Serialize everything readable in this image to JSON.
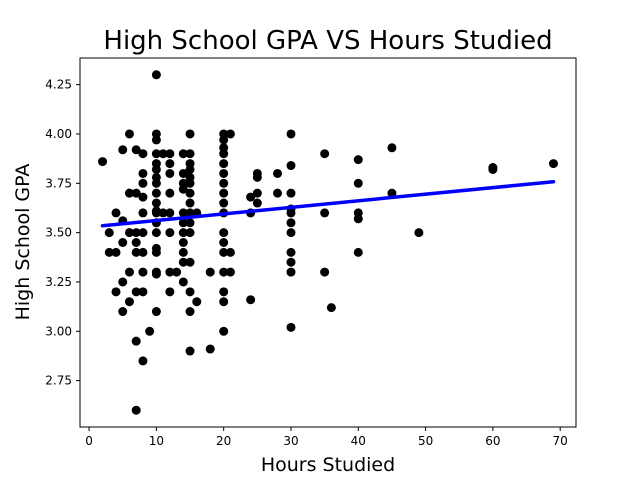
{
  "chart_data": {
    "type": "scatter",
    "title": "High School GPA VS Hours Studied",
    "xlabel": "Hours Studied",
    "ylabel": "High School GPA",
    "xlim": [
      -1.35,
      72.35
    ],
    "ylim": [
      2.515,
      4.385
    ],
    "x_ticks": [
      0,
      10,
      20,
      30,
      40,
      50,
      60,
      70
    ],
    "y_ticks": [
      2.75,
      3.0,
      3.25,
      3.5,
      3.75,
      4.0,
      4.25
    ],
    "y_tick_labels": [
      "2.75",
      "3.00",
      "3.25",
      "3.50",
      "3.75",
      "4.00",
      "4.25"
    ],
    "grid": false,
    "point_color": "#000000",
    "line_color": "#0000ff",
    "points": [
      [
        2,
        3.86
      ],
      [
        3,
        3.5
      ],
      [
        3,
        3.4
      ],
      [
        4,
        3.6
      ],
      [
        4,
        3.4
      ],
      [
        4,
        3.2
      ],
      [
        5,
        3.92
      ],
      [
        5,
        3.56
      ],
      [
        5,
        3.45
      ],
      [
        5,
        3.25
      ],
      [
        5,
        3.1
      ],
      [
        6,
        4.0
      ],
      [
        6,
        3.7
      ],
      [
        6,
        3.5
      ],
      [
        6,
        3.3
      ],
      [
        6,
        3.15
      ],
      [
        7,
        3.92
      ],
      [
        7,
        3.7
      ],
      [
        7,
        3.5
      ],
      [
        7,
        3.45
      ],
      [
        7,
        3.4
      ],
      [
        7,
        3.2
      ],
      [
        7,
        2.95
      ],
      [
        7,
        2.6
      ],
      [
        8,
        3.9
      ],
      [
        8,
        3.8
      ],
      [
        8,
        3.75
      ],
      [
        8,
        3.68
      ],
      [
        8,
        3.6
      ],
      [
        8,
        3.5
      ],
      [
        8,
        3.4
      ],
      [
        8,
        3.3
      ],
      [
        8,
        3.2
      ],
      [
        8,
        2.85
      ],
      [
        9,
        3.0
      ],
      [
        10,
        4.3
      ],
      [
        10,
        4.0
      ],
      [
        10,
        3.97
      ],
      [
        10,
        3.9
      ],
      [
        10,
        3.85
      ],
      [
        10,
        3.82
      ],
      [
        10,
        3.78
      ],
      [
        10,
        3.75
      ],
      [
        10,
        3.7
      ],
      [
        10,
        3.65
      ],
      [
        10,
        3.61
      ],
      [
        10,
        3.6
      ],
      [
        10,
        3.55
      ],
      [
        10,
        3.5
      ],
      [
        10,
        3.42
      ],
      [
        10,
        3.4
      ],
      [
        10,
        3.3
      ],
      [
        10,
        3.29
      ],
      [
        10,
        3.1
      ],
      [
        11,
        3.9
      ],
      [
        11,
        3.6
      ],
      [
        12,
        3.9
      ],
      [
        12,
        3.85
      ],
      [
        12,
        3.8
      ],
      [
        12,
        3.7
      ],
      [
        12,
        3.6
      ],
      [
        12,
        3.5
      ],
      [
        12,
        3.3
      ],
      [
        12,
        3.2
      ],
      [
        13,
        3.3
      ],
      [
        14,
        3.9
      ],
      [
        14,
        3.8
      ],
      [
        14,
        3.75
      ],
      [
        14,
        3.72
      ],
      [
        14,
        3.6
      ],
      [
        14,
        3.55
      ],
      [
        14,
        3.5
      ],
      [
        14,
        3.45
      ],
      [
        14,
        3.4
      ],
      [
        14,
        3.35
      ],
      [
        14,
        3.25
      ],
      [
        15,
        4.0
      ],
      [
        15,
        3.9
      ],
      [
        15,
        3.85
      ],
      [
        15,
        3.82
      ],
      [
        15,
        3.78
      ],
      [
        15,
        3.75
      ],
      [
        15,
        3.7
      ],
      [
        15,
        3.65
      ],
      [
        15,
        3.6
      ],
      [
        15,
        3.55
      ],
      [
        15,
        3.5
      ],
      [
        15,
        3.35
      ],
      [
        15,
        3.2
      ],
      [
        15,
        3.1
      ],
      [
        15,
        2.9
      ],
      [
        16,
        3.6
      ],
      [
        16,
        3.15
      ],
      [
        18,
        3.3
      ],
      [
        18,
        2.91
      ],
      [
        20,
        4.0
      ],
      [
        20,
        3.97
      ],
      [
        20,
        3.93
      ],
      [
        20,
        3.9
      ],
      [
        20,
        3.85
      ],
      [
        20,
        3.8
      ],
      [
        20,
        3.75
      ],
      [
        20,
        3.7
      ],
      [
        20,
        3.65
      ],
      [
        20,
        3.6
      ],
      [
        20,
        3.5
      ],
      [
        20,
        3.45
      ],
      [
        20,
        3.4
      ],
      [
        20,
        3.3
      ],
      [
        20,
        3.2
      ],
      [
        20,
        3.15
      ],
      [
        20,
        3.0
      ],
      [
        21,
        4.0
      ],
      [
        21,
        3.4
      ],
      [
        21,
        3.3
      ],
      [
        24,
        3.68
      ],
      [
        24,
        3.6
      ],
      [
        24,
        3.16
      ],
      [
        25,
        3.8
      ],
      [
        25,
        3.78
      ],
      [
        25,
        3.7
      ],
      [
        25,
        3.65
      ],
      [
        28,
        3.8
      ],
      [
        28,
        3.7
      ],
      [
        30,
        4.0
      ],
      [
        30,
        3.84
      ],
      [
        30,
        3.7
      ],
      [
        30,
        3.62
      ],
      [
        30,
        3.6
      ],
      [
        30,
        3.55
      ],
      [
        30,
        3.5
      ],
      [
        30,
        3.4
      ],
      [
        30,
        3.35
      ],
      [
        30,
        3.3
      ],
      [
        30,
        3.02
      ],
      [
        35,
        3.9
      ],
      [
        35,
        3.6
      ],
      [
        35,
        3.3
      ],
      [
        36,
        3.12
      ],
      [
        40,
        3.87
      ],
      [
        40,
        3.75
      ],
      [
        40,
        3.6
      ],
      [
        40,
        3.57
      ],
      [
        40,
        3.4
      ],
      [
        45,
        3.93
      ],
      [
        45,
        3.7
      ],
      [
        49,
        3.5
      ],
      [
        60,
        3.83
      ],
      [
        60,
        3.82
      ],
      [
        69,
        3.85
      ]
    ],
    "trend_line": {
      "x": [
        2,
        69
      ],
      "y": [
        3.535,
        3.758
      ]
    }
  }
}
